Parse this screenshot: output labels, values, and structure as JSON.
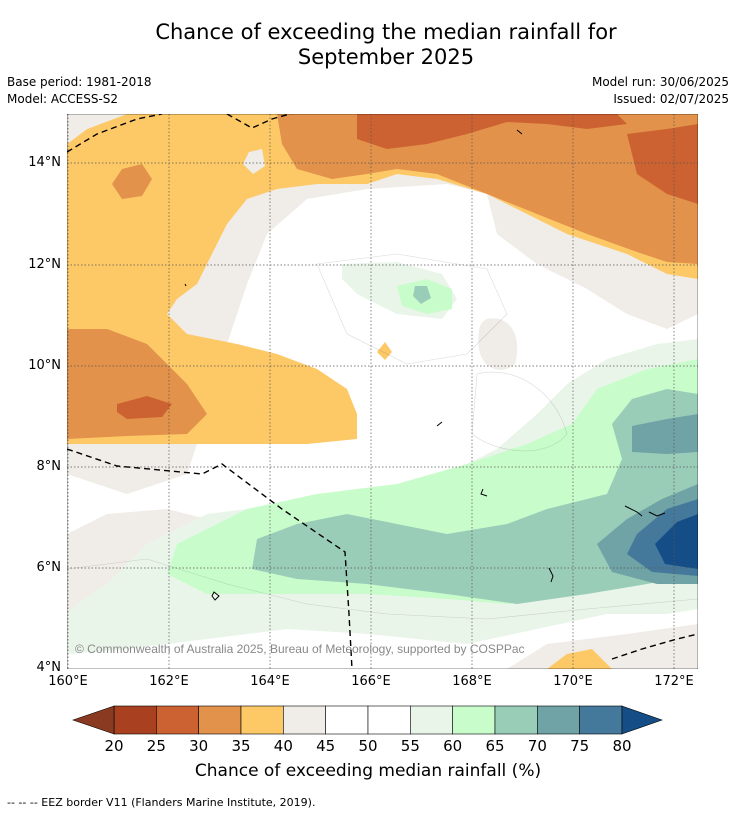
{
  "title_line1": "Chance of exceeding the median rainfall for",
  "title_line2": "September 2025",
  "meta": {
    "base_period": "Base period: 1981-2018",
    "model": "Model: ACCESS-S2",
    "model_run": "Model run: 30/06/2025",
    "issued": "Issued: 02/07/2025"
  },
  "map": {
    "y_ticks": [
      "14°N",
      "12°N",
      "10°N",
      "8°N",
      "6°N",
      "4°N"
    ],
    "x_ticks": [
      "160°E",
      "162°E",
      "164°E",
      "166°E",
      "168°E",
      "170°E",
      "172°E"
    ],
    "copyright": "© Commonwealth of Australia 2025, Bureau of Meteorology, supported by COSPPac"
  },
  "colorbar": {
    "ticks": [
      "20",
      "25",
      "30",
      "35",
      "40",
      "45",
      "50",
      "55",
      "60",
      "65",
      "70",
      "75",
      "80"
    ],
    "colors": [
      "#a9401f",
      "#cc6231",
      "#e2924a",
      "#fdc967",
      "#f0ece7",
      "#ffffff",
      "#ffffff",
      "#eaf5ea",
      "#c9fccb",
      "#9acdb8",
      "#6fa3a5",
      "#45799c"
    ],
    "under_color": "#8a3a20",
    "over_color": "#154d86",
    "label": "Chance of exceeding median rainfall (%)"
  },
  "footer": "--  --  -- EEZ border V11 (Flanders Marine Institute, 2019)."
}
